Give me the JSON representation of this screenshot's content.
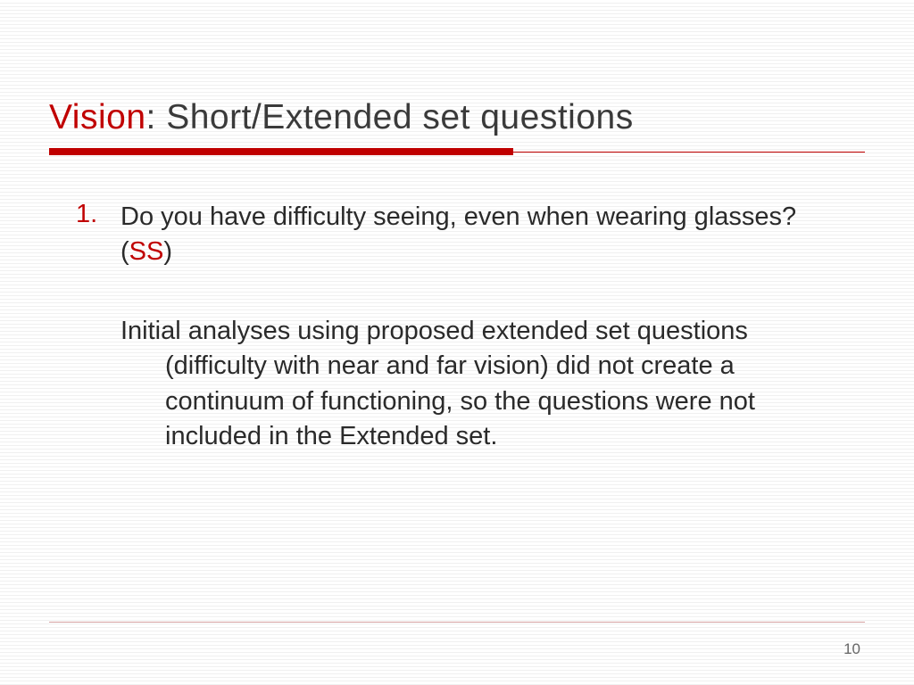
{
  "slide": {
    "title_accent": "Vision",
    "title_rest": ": Short/Extended set questions",
    "list": {
      "number": "1.",
      "question_text": "Do you have difficulty seeing, even when wearing glasses? (",
      "tag": "SS",
      "question_close": ")"
    },
    "paragraph": "Initial analyses using proposed extended set questions (difficulty with near and far vision) did not create a continuum of functioning, so the questions were not included in the Extended set.",
    "page_number": "10"
  },
  "colors": {
    "accent": "#c00000",
    "text": "#2a2a2a",
    "background": "#ffffff",
    "line_light": "#d4a0a0"
  }
}
